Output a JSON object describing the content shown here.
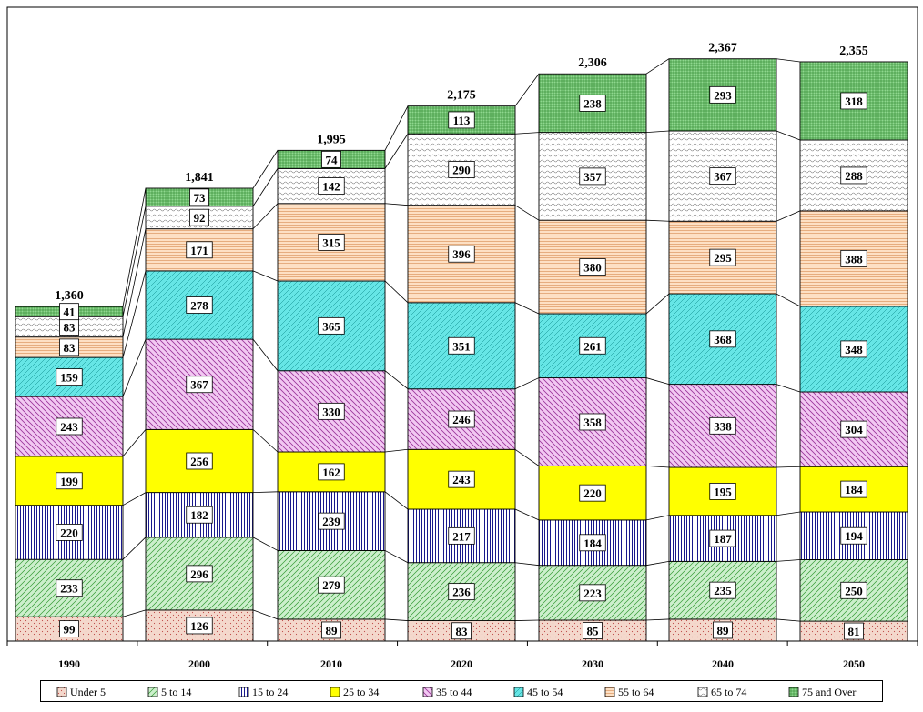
{
  "chart_data": {
    "type": "bar",
    "stacked": true,
    "categories": [
      "1990",
      "2000",
      "2010",
      "2020",
      "2030",
      "2040",
      "2050"
    ],
    "totals": [
      "1,360",
      "1,841",
      "1,995",
      "2,175",
      "2,306",
      "2,367",
      "2,355"
    ],
    "series": [
      {
        "name": "Under 5",
        "color": "#f4d8cc",
        "pattern": "dots",
        "values": [
          99,
          126,
          89,
          83,
          85,
          89,
          81
        ]
      },
      {
        "name": "5 to 14",
        "color": "#ccefcc",
        "pattern": "diag",
        "values": [
          233,
          296,
          279,
          236,
          223,
          235,
          250
        ]
      },
      {
        "name": "15 to 24",
        "color": "#ffffff",
        "pattern": "vlines",
        "values": [
          220,
          182,
          239,
          217,
          184,
          187,
          194
        ]
      },
      {
        "name": "25 to 34",
        "color": "#ffff00",
        "pattern": "solid",
        "values": [
          199,
          256,
          162,
          243,
          220,
          195,
          184
        ]
      },
      {
        "name": "35 to 44",
        "color": "#f2c8f2",
        "pattern": "diag2",
        "values": [
          243,
          367,
          330,
          246,
          358,
          338,
          304
        ]
      },
      {
        "name": "45 to 54",
        "color": "#66e6e6",
        "pattern": "xdots",
        "values": [
          159,
          278,
          365,
          351,
          261,
          368,
          348
        ]
      },
      {
        "name": "55 to 64",
        "color": "#fde0c4",
        "pattern": "hlines",
        "values": [
          83,
          171,
          315,
          396,
          380,
          295,
          388
        ]
      },
      {
        "name": "65 to 74",
        "color": "#ffffff",
        "pattern": "wave",
        "values": [
          83,
          92,
          142,
          290,
          357,
          367,
          288
        ]
      },
      {
        "name": "75 and Over",
        "color": "#8fd88f",
        "pattern": "grid",
        "values": [
          41,
          73,
          74,
          113,
          238,
          293,
          318
        ]
      }
    ],
    "ylim": [
      0,
      2450
    ],
    "grid": false,
    "legend_position": "bottom"
  }
}
